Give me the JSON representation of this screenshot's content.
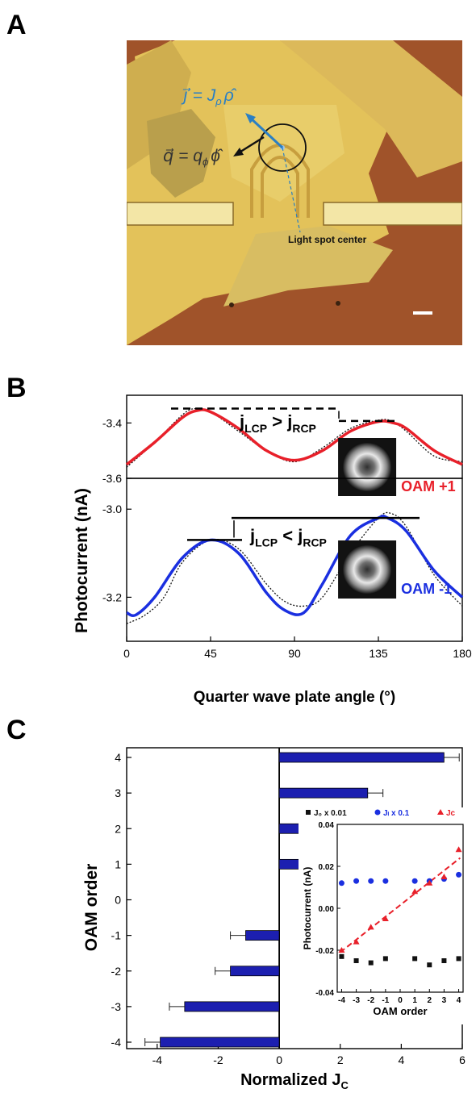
{
  "panels": {
    "a": "A",
    "b": "B",
    "c": "C"
  },
  "panel_a": {
    "eq_j": "j⃗ = J",
    "eq_j_sub": "ρ",
    "eq_j_hat": "ρ̂",
    "eq_q": "q⃗ = q",
    "eq_q_sub": "ϕ",
    "eq_q_hat": "ϕ̂",
    "spot_label": "Light spot center",
    "colors": {
      "substrate": "#a0532a",
      "flake": "#e3c25a",
      "electrode": "#f3e6a6",
      "j_arrow": "#2a7fc4",
      "q_arrow": "#1a1a1a"
    }
  },
  "chart_data": [
    {
      "type": "line",
      "panel": "B-top",
      "xlim": [
        0,
        180
      ],
      "ylim": [
        -3.6,
        -3.3
      ],
      "yticks": [
        -3.4,
        -3.6
      ],
      "ytick_labels": [
        "-3.4",
        "-3.6"
      ],
      "series": [
        {
          "style": "fit",
          "color": "#e8202a",
          "x": [
            0,
            15,
            30,
            38,
            45,
            60,
            75,
            90,
            105,
            120,
            135,
            143,
            150,
            165,
            180
          ],
          "y": [
            -3.55,
            -3.47,
            -3.38,
            -3.355,
            -3.36,
            -3.42,
            -3.5,
            -3.535,
            -3.5,
            -3.43,
            -3.395,
            -3.4,
            -3.42,
            -3.5,
            -3.55
          ]
        },
        {
          "style": "data",
          "color": "#111111",
          "x": [
            0,
            15,
            30,
            37,
            45,
            60,
            75,
            90,
            105,
            120,
            135,
            142,
            150,
            165,
            180
          ],
          "y": [
            -3.56,
            -3.47,
            -3.37,
            -3.348,
            -3.36,
            -3.43,
            -3.5,
            -3.54,
            -3.49,
            -3.42,
            -3.39,
            -3.393,
            -3.43,
            -3.52,
            -3.54
          ]
        }
      ],
      "annotation": {
        "lhs": "j",
        "lhs_sub": "LCP",
        "op": " > ",
        "rhs": "j",
        "rhs_sub": "RCP"
      },
      "inset_label": "OAM +1",
      "inset_color": "#e8202a"
    },
    {
      "type": "line",
      "panel": "B-bottom",
      "xlim": [
        0,
        180
      ],
      "xticks": [
        0,
        45,
        90,
        135,
        180
      ],
      "xlabel": "Quarter wave plate angle (°)",
      "ylim": [
        -3.3,
        -2.93
      ],
      "yticks": [
        -3.0,
        -3.2
      ],
      "ytick_labels": [
        "-3.0",
        "-3.2"
      ],
      "ylabel": "Photocurrent (nA)",
      "series": [
        {
          "style": "fit",
          "color": "#1a2fe0",
          "x": [
            0,
            5,
            15,
            30,
            45,
            60,
            75,
            85,
            95,
            105,
            120,
            135,
            140,
            150,
            165,
            180
          ],
          "y": [
            -3.235,
            -3.24,
            -3.2,
            -3.11,
            -3.07,
            -3.1,
            -3.19,
            -3.23,
            -3.235,
            -3.17,
            -3.06,
            -3.02,
            -3.02,
            -3.05,
            -3.14,
            -3.2
          ]
        },
        {
          "style": "data",
          "color": "#111111",
          "x": [
            0,
            10,
            20,
            30,
            45,
            60,
            75,
            85,
            95,
            105,
            120,
            135,
            142,
            150,
            165,
            180
          ],
          "y": [
            -3.26,
            -3.24,
            -3.2,
            -3.12,
            -3.07,
            -3.09,
            -3.17,
            -3.21,
            -3.22,
            -3.2,
            -3.1,
            -3.02,
            -3.01,
            -3.04,
            -3.15,
            -3.22
          ]
        }
      ],
      "annotation": {
        "lhs": "j",
        "lhs_sub": "LCP",
        "op": " < ",
        "rhs": "j",
        "rhs_sub": "RCP"
      },
      "inset_label": "OAM -1",
      "inset_color": "#1a2fe0"
    },
    {
      "type": "bar",
      "panel": "C",
      "orientation": "horizontal",
      "categories": [
        "4",
        "3",
        "2",
        "1",
        "0",
        "-1",
        "-2",
        "-3",
        "-4"
      ],
      "values": [
        5.4,
        2.9,
        2.2,
        1.8,
        0,
        -1.1,
        -1.6,
        -3.1,
        -3.9
      ],
      "errors": [
        0.5,
        0.5,
        0.5,
        0.5,
        0,
        0.5,
        0.5,
        0.5,
        0.5
      ],
      "xlim": [
        -5,
        6
      ],
      "xticks": [
        -4,
        -2,
        0,
        2,
        4,
        6
      ],
      "xlabel": "Normalized J",
      "xlabel_sub": "C",
      "ylabel": "OAM order",
      "bar_color": "#1c1fb0"
    },
    {
      "type": "scatter",
      "panel": "C-inset",
      "xlim": [
        -4.3,
        4.3
      ],
      "xticks": [
        -4,
        -3,
        -2,
        -1,
        0,
        1,
        2,
        3,
        4
      ],
      "ylim": [
        -0.04,
        0.04
      ],
      "yticks": [
        0.04,
        0.02,
        0.0,
        -0.02,
        -0.04
      ],
      "ytick_labels": [
        "0.04",
        "0.02",
        "0.00",
        "-0.02",
        "-0.04"
      ],
      "xlabel": "OAM order",
      "ylabel": "Photocurrent (nA)",
      "series": [
        {
          "name": "J₀ x 0.01",
          "marker": "square",
          "color": "#111111",
          "x": [
            -4,
            -3,
            -2,
            -1,
            1,
            2,
            3,
            4
          ],
          "y": [
            -0.023,
            -0.025,
            -0.026,
            -0.024,
            -0.024,
            -0.027,
            -0.025,
            -0.024
          ]
        },
        {
          "name": "Jₗ x 0.1",
          "marker": "circle",
          "color": "#1a2fe0",
          "x": [
            -4,
            -3,
            -2,
            -1,
            1,
            2,
            3,
            4
          ],
          "y": [
            0.012,
            0.013,
            0.013,
            0.013,
            0.013,
            0.013,
            0.014,
            0.016
          ]
        },
        {
          "name": "Jc",
          "marker": "triangle",
          "color": "#e8202a",
          "x": [
            -4,
            -3,
            -2,
            -1,
            1,
            2,
            3,
            4
          ],
          "y": [
            -0.02,
            -0.016,
            -0.009,
            -0.005,
            0.008,
            0.012,
            0.015,
            0.028
          ]
        }
      ],
      "fit": {
        "color": "#e8202a",
        "x": [
          -4.1,
          4.1
        ],
        "y": [
          -0.021,
          0.024
        ]
      }
    }
  ]
}
